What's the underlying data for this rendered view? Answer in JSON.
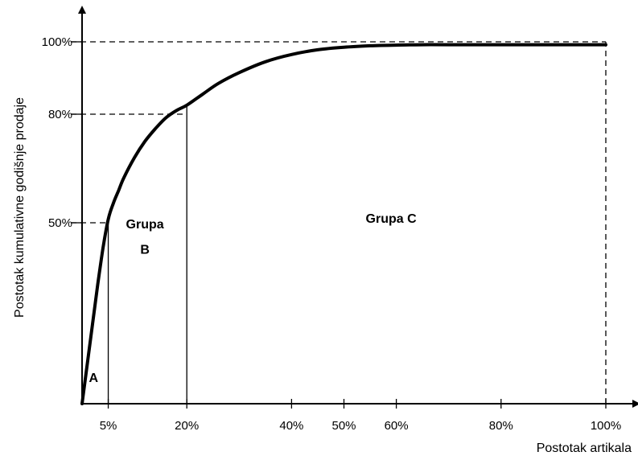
{
  "chart_data": {
    "type": "line",
    "title": "",
    "xlabel": "Postotak artikala",
    "ylabel": "Postotak kumulativne godišnje prodaje",
    "xlim": [
      0,
      100
    ],
    "ylim": [
      0,
      100
    ],
    "grid": false,
    "x_ticks": [
      {
        "value": 5,
        "label": "5%"
      },
      {
        "value": 20,
        "label": "20%"
      },
      {
        "value": 40,
        "label": "40%"
      },
      {
        "value": 50,
        "label": "50%"
      },
      {
        "value": 60,
        "label": "60%"
      },
      {
        "value": 80,
        "label": "80%"
      },
      {
        "value": 100,
        "label": "100%"
      }
    ],
    "y_ticks": [
      {
        "value": 50,
        "label": "50%"
      },
      {
        "value": 80,
        "label": "80%"
      },
      {
        "value": 100,
        "label": "100%"
      }
    ],
    "series": [
      {
        "x": [
          0,
          1,
          2,
          3,
          4,
          5,
          6,
          7,
          8,
          10,
          12,
          14,
          16,
          18,
          20,
          23,
          26,
          30,
          35,
          40,
          45,
          50,
          55,
          60,
          65,
          70,
          80,
          90,
          100
        ],
        "y": [
          0,
          11,
          22,
          33,
          43,
          51,
          55.5,
          59,
          62.5,
          68,
          72.5,
          76,
          79,
          81,
          82.5,
          85.5,
          88.5,
          91.5,
          94.5,
          96.5,
          97.8,
          98.5,
          98.9,
          99.1,
          99.2,
          99.2,
          99.2,
          99.2,
          99.2
        ]
      }
    ],
    "reference_lines": [
      {
        "axis": "x",
        "value": 5
      },
      {
        "axis": "x",
        "value": 20
      },
      {
        "axis": "y",
        "value": 50,
        "to_x": 5
      },
      {
        "axis": "y",
        "value": 80,
        "to_x": 20
      },
      {
        "axis": "y",
        "value": 100,
        "to_x": 100
      },
      {
        "axis": "x",
        "value": 100,
        "dashed": true
      }
    ],
    "annotations": [
      {
        "text": "A",
        "x": 2.2,
        "y": 6
      },
      {
        "text": "Grupa",
        "x": 12,
        "y": 48.5
      },
      {
        "text": "B",
        "x": 12,
        "y": 41.5
      },
      {
        "text": "Grupa C",
        "x": 59,
        "y": 50
      }
    ]
  }
}
